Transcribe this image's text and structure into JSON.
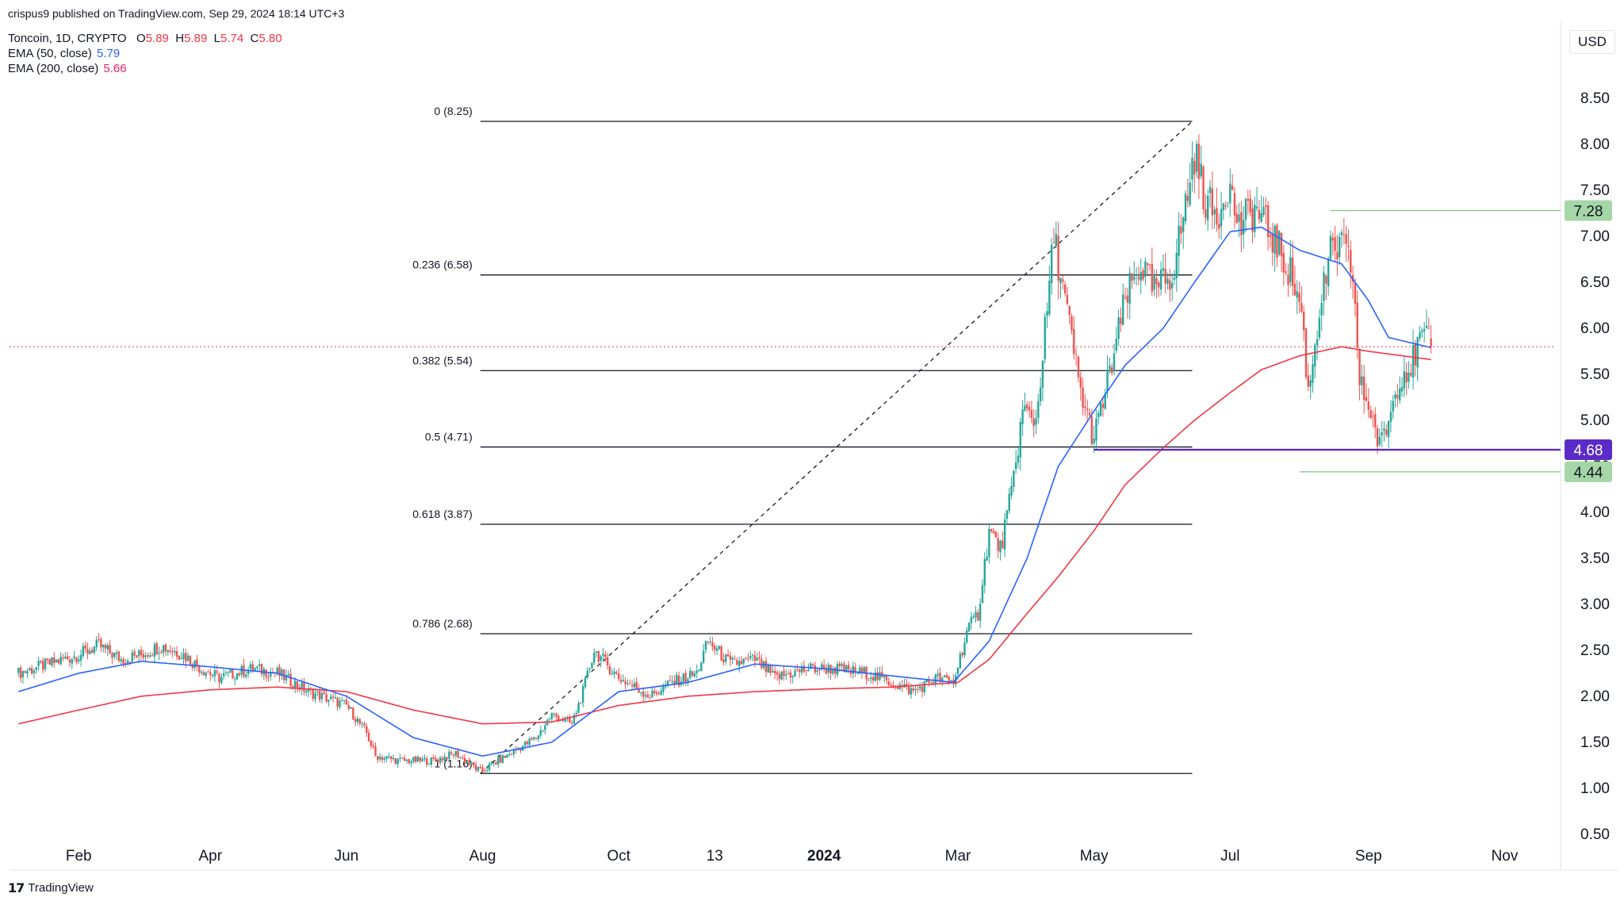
{
  "header": {
    "published": "crispus9 published on TradingView.com, Sep 29, 2024 18:14 UTC+3",
    "symbol": "Toncoin, 1D, CRYPTO",
    "ohlc": [
      {
        "label": "O",
        "value": "5.89"
      },
      {
        "label": "H",
        "value": "5.89"
      },
      {
        "label": "L",
        "value": "5.74"
      },
      {
        "label": "C",
        "value": "5.80"
      }
    ],
    "ema50_label": "EMA (50, close)",
    "ema50_value": "5.79",
    "ema200_label": "EMA (200, close)",
    "ema200_value": "5.66"
  },
  "currency_button": "USD",
  "footer_logo": "TradingView",
  "colors": {
    "up": "#26a69a",
    "down": "#ef5350",
    "ema50": "#2962ff",
    "ema200": "#f23645",
    "fib_line": "#131722",
    "price_line": "#f23645",
    "support": "#5b2bc9",
    "green_label": "#a5d6a7"
  },
  "chart_data": {
    "type": "candlestick",
    "ylim": [
      0.3,
      8.75
    ],
    "y_ticks": [
      "0.50",
      "1.00",
      "1.50",
      "2.00",
      "2.50",
      "3.00",
      "3.50",
      "4.00",
      "4.50",
      "5.00",
      "5.50",
      "6.00",
      "6.50",
      "7.00",
      "7.50",
      "8.00",
      "8.50"
    ],
    "x_ticks": [
      {
        "label": "Feb",
        "date": "2023-02-01"
      },
      {
        "label": "Apr",
        "date": "2023-04-01"
      },
      {
        "label": "Jun",
        "date": "2023-06-01"
      },
      {
        "label": "Aug",
        "date": "2023-08-01"
      },
      {
        "label": "Oct",
        "date": "2023-10-01"
      },
      {
        "label": "13",
        "date": "2023-11-13"
      },
      {
        "label": "2024",
        "date": "2024-01-01",
        "bold": true
      },
      {
        "label": "Mar",
        "date": "2024-03-01"
      },
      {
        "label": "May",
        "date": "2024-05-01"
      },
      {
        "label": "Jul",
        "date": "2024-07-01"
      },
      {
        "label": "Sep",
        "date": "2024-09-01"
      },
      {
        "label": "Nov",
        "date": "2024-11-01"
      }
    ],
    "price_anchors": [
      [
        "2023-01-05",
        2.25
      ],
      [
        "2023-01-25",
        2.4
      ],
      [
        "2023-02-01",
        2.45
      ],
      [
        "2023-02-10",
        2.55
      ],
      [
        "2023-02-20",
        2.4
      ],
      [
        "2023-03-01",
        2.45
      ],
      [
        "2023-03-10",
        2.55
      ],
      [
        "2023-03-20",
        2.45
      ],
      [
        "2023-03-28",
        2.3
      ],
      [
        "2023-04-05",
        2.2
      ],
      [
        "2023-04-20",
        2.3
      ],
      [
        "2023-05-01",
        2.25
      ],
      [
        "2023-05-15",
        2.05
      ],
      [
        "2023-06-01",
        1.9
      ],
      [
        "2023-06-10",
        1.6
      ],
      [
        "2023-06-14",
        1.35
      ],
      [
        "2023-06-25",
        1.3
      ],
      [
        "2023-07-10",
        1.3
      ],
      [
        "2023-07-20",
        1.38
      ],
      [
        "2023-07-31",
        1.18
      ],
      [
        "2023-08-15",
        1.4
      ],
      [
        "2023-08-25",
        1.55
      ],
      [
        "2023-09-01",
        1.8
      ],
      [
        "2023-09-10",
        1.7
      ],
      [
        "2023-09-15",
        2.05
      ],
      [
        "2023-09-20",
        2.5
      ],
      [
        "2023-10-01",
        2.2
      ],
      [
        "2023-10-15",
        2.0
      ],
      [
        "2023-10-25",
        2.15
      ],
      [
        "2023-11-05",
        2.25
      ],
      [
        "2023-11-10",
        2.6
      ],
      [
        "2023-11-20",
        2.35
      ],
      [
        "2023-12-01",
        2.4
      ],
      [
        "2023-12-10",
        2.2
      ],
      [
        "2023-12-25",
        2.3
      ],
      [
        "2024-01-05",
        2.3
      ],
      [
        "2024-01-20",
        2.25
      ],
      [
        "2024-01-31",
        2.15
      ],
      [
        "2024-02-10",
        2.05
      ],
      [
        "2024-02-20",
        2.2
      ],
      [
        "2024-02-28",
        2.15
      ],
      [
        "2024-03-05",
        2.7
      ],
      [
        "2024-03-10",
        2.9
      ],
      [
        "2024-03-15",
        3.8
      ],
      [
        "2024-03-20",
        3.6
      ],
      [
        "2024-03-25",
        4.2
      ],
      [
        "2024-03-30",
        5.1
      ],
      [
        "2024-04-05",
        5.0
      ],
      [
        "2024-04-10",
        6.2
      ],
      [
        "2024-04-13",
        7.0
      ],
      [
        "2024-04-18",
        6.3
      ],
      [
        "2024-04-25",
        5.3
      ],
      [
        "2024-05-01",
        4.8
      ],
      [
        "2024-05-08",
        5.5
      ],
      [
        "2024-05-15",
        6.3
      ],
      [
        "2024-05-22",
        6.7
      ],
      [
        "2024-05-28",
        6.4
      ],
      [
        "2024-06-05",
        6.6
      ],
      [
        "2024-06-10",
        7.2
      ],
      [
        "2024-06-15",
        7.9
      ],
      [
        "2024-06-20",
        7.4
      ],
      [
        "2024-06-25",
        7.2
      ],
      [
        "2024-06-30",
        7.6
      ],
      [
        "2024-07-05",
        7.1
      ],
      [
        "2024-07-12",
        7.3
      ],
      [
        "2024-07-20",
        7.0
      ],
      [
        "2024-07-28",
        6.6
      ],
      [
        "2024-08-02",
        6.2
      ],
      [
        "2024-08-05",
        5.3
      ],
      [
        "2024-08-10",
        6.2
      ],
      [
        "2024-08-15",
        6.8
      ],
      [
        "2024-08-20",
        6.9
      ],
      [
        "2024-08-25",
        6.6
      ],
      [
        "2024-08-28",
        5.4
      ],
      [
        "2024-09-02",
        5.1
      ],
      [
        "2024-09-06",
        4.7
      ],
      [
        "2024-09-10",
        5.0
      ],
      [
        "2024-09-15",
        5.5
      ],
      [
        "2024-09-20",
        5.6
      ],
      [
        "2024-09-25",
        5.9
      ],
      [
        "2024-09-29",
        5.8
      ]
    ],
    "ema50_anchors": [
      [
        "2023-01-05",
        2.05
      ],
      [
        "2023-02-01",
        2.25
      ],
      [
        "2023-03-01",
        2.38
      ],
      [
        "2023-04-01",
        2.32
      ],
      [
        "2023-05-01",
        2.25
      ],
      [
        "2023-06-01",
        2.0
      ],
      [
        "2023-07-01",
        1.55
      ],
      [
        "2023-08-01",
        1.35
      ],
      [
        "2023-09-01",
        1.5
      ],
      [
        "2023-10-01",
        2.05
      ],
      [
        "2023-11-01",
        2.15
      ],
      [
        "2023-12-01",
        2.35
      ],
      [
        "2024-01-01",
        2.3
      ],
      [
        "2024-02-01",
        2.22
      ],
      [
        "2024-02-28",
        2.15
      ],
      [
        "2024-03-15",
        2.6
      ],
      [
        "2024-04-01",
        3.5
      ],
      [
        "2024-04-15",
        4.5
      ],
      [
        "2024-05-01",
        5.1
      ],
      [
        "2024-05-15",
        5.6
      ],
      [
        "2024-06-01",
        6.0
      ],
      [
        "2024-06-15",
        6.5
      ],
      [
        "2024-07-01",
        7.05
      ],
      [
        "2024-07-15",
        7.1
      ],
      [
        "2024-08-01",
        6.85
      ],
      [
        "2024-08-20",
        6.7
      ],
      [
        "2024-09-01",
        6.3
      ],
      [
        "2024-09-10",
        5.9
      ],
      [
        "2024-09-29",
        5.79
      ]
    ],
    "ema200_anchors": [
      [
        "2023-01-05",
        1.7
      ],
      [
        "2023-02-01",
        1.85
      ],
      [
        "2023-03-01",
        2.0
      ],
      [
        "2023-04-01",
        2.07
      ],
      [
        "2023-05-01",
        2.1
      ],
      [
        "2023-06-01",
        2.05
      ],
      [
        "2023-07-01",
        1.85
      ],
      [
        "2023-08-01",
        1.7
      ],
      [
        "2023-09-01",
        1.72
      ],
      [
        "2023-10-01",
        1.9
      ],
      [
        "2023-11-01",
        2.0
      ],
      [
        "2023-12-01",
        2.05
      ],
      [
        "2024-01-01",
        2.08
      ],
      [
        "2024-02-01",
        2.1
      ],
      [
        "2024-03-01",
        2.15
      ],
      [
        "2024-03-15",
        2.4
      ],
      [
        "2024-04-01",
        2.9
      ],
      [
        "2024-04-15",
        3.3
      ],
      [
        "2024-05-01",
        3.8
      ],
      [
        "2024-05-15",
        4.3
      ],
      [
        "2024-06-01",
        4.7
      ],
      [
        "2024-06-15",
        5.0
      ],
      [
        "2024-07-01",
        5.3
      ],
      [
        "2024-07-15",
        5.55
      ],
      [
        "2024-08-01",
        5.7
      ],
      [
        "2024-08-20",
        5.8
      ],
      [
        "2024-09-01",
        5.75
      ],
      [
        "2024-09-29",
        5.66
      ]
    ],
    "fibonacci": {
      "start_date": "2023-07-31",
      "end_date": "2024-06-14",
      "levels": [
        {
          "label": "0 (8.25)",
          "value": 8.25
        },
        {
          "label": "0.236 (6.58)",
          "value": 6.58
        },
        {
          "label": "0.382 (5.54)",
          "value": 5.54
        },
        {
          "label": "0.5 (4.71)",
          "value": 4.71
        },
        {
          "label": "0.618 (3.87)",
          "value": 3.87
        },
        {
          "label": "0.786 (2.68)",
          "value": 2.68
        },
        {
          "label": "1 (1.16)",
          "value": 1.16
        }
      ]
    },
    "last_price": 5.8,
    "horizontal_levels": [
      {
        "label": "7.28",
        "value": 7.28,
        "start_date": "2024-08-15",
        "style": "green"
      },
      {
        "label": "4.68",
        "value": 4.68,
        "start_date": "2024-05-01",
        "style": "purple"
      },
      {
        "label": "4.44",
        "value": 4.44,
        "start_date": "2024-08-01",
        "style": "green"
      }
    ]
  }
}
